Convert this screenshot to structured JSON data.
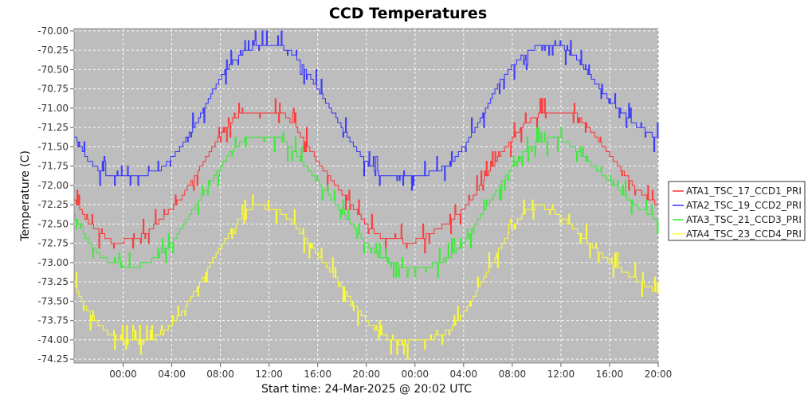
{
  "chart_data": {
    "type": "line",
    "title": "CCD Temperatures",
    "xlabel": "Start time: 24-Mar-2025 @ 20:02 UTC",
    "ylabel": "Temperature (C)",
    "ylim": [
      -74.3,
      -69.97
    ],
    "yticks": [
      -70.0,
      -70.25,
      -70.5,
      -70.75,
      -71.0,
      -71.25,
      -71.5,
      -71.75,
      -72.0,
      -72.25,
      -72.5,
      -72.75,
      -73.0,
      -73.25,
      -73.5,
      -73.75,
      -74.0,
      -74.25
    ],
    "ytick_labels": [
      "-70.00",
      "-70.25",
      "-70.50",
      "-70.75",
      "-71.00",
      "-71.25",
      "-71.50",
      "-71.75",
      "-72.00",
      "-72.25",
      "-72.50",
      "-72.75",
      "-73.00",
      "-73.25",
      "-73.50",
      "-73.75",
      "-74.00",
      "-74.25"
    ],
    "xlim": [
      -4.03,
      44.0
    ],
    "xticks": [
      0,
      4,
      8,
      12,
      16,
      20,
      24,
      28,
      32,
      36,
      40,
      44
    ],
    "xtick_labels": [
      "00:00",
      "04:00",
      "08:00",
      "12:00",
      "16:00",
      "20:00",
      "00:00",
      "04:00",
      "08:00",
      "12:00",
      "16:00",
      "20:00"
    ],
    "x_unit": "hours since 00:00 on 25-Mar-2025",
    "grid": true,
    "legend_position": "right",
    "series": [
      {
        "name": "ATA1_TSC_17_CCD1_PRI",
        "color": "#ff3333",
        "x": [
          -4,
          -3,
          -2,
          -1,
          0,
          1,
          2,
          3,
          4,
          5,
          6,
          7,
          8,
          9,
          10,
          11,
          12,
          13,
          14,
          15,
          16,
          17,
          18,
          19,
          20,
          21,
          22,
          23,
          24,
          25,
          26,
          27,
          28,
          29,
          30,
          31,
          32,
          33,
          34,
          35,
          36,
          37,
          38,
          39,
          40,
          41,
          42,
          43,
          44
        ],
        "y": [
          -72.2,
          -72.45,
          -72.6,
          -72.72,
          -72.72,
          -72.7,
          -72.6,
          -72.45,
          -72.3,
          -72.1,
          -71.85,
          -71.6,
          -71.35,
          -71.15,
          -71.05,
          -71.05,
          -71.05,
          -71.05,
          -71.2,
          -71.45,
          -71.7,
          -71.9,
          -72.1,
          -72.3,
          -72.5,
          -72.65,
          -72.7,
          -72.72,
          -72.72,
          -72.65,
          -72.55,
          -72.45,
          -72.3,
          -72.1,
          -71.85,
          -71.6,
          -71.4,
          -71.2,
          -71.1,
          -71.05,
          -71.05,
          -71.05,
          -71.2,
          -71.4,
          -71.6,
          -71.8,
          -72.0,
          -72.15,
          -72.25
        ]
      },
      {
        "name": "ATA2_TSC_19_CCD2_PRI",
        "color": "#3333ff",
        "x": [
          -4,
          -3,
          -2,
          -1,
          0,
          1,
          2,
          3,
          4,
          5,
          6,
          7,
          8,
          9,
          10,
          11,
          12,
          13,
          14,
          15,
          16,
          17,
          18,
          19,
          20,
          21,
          22,
          23,
          24,
          25,
          26,
          27,
          28,
          29,
          30,
          31,
          32,
          33,
          34,
          35,
          36,
          37,
          38,
          39,
          40,
          41,
          42,
          43,
          44
        ],
        "y": [
          -71.35,
          -71.65,
          -71.8,
          -71.9,
          -71.9,
          -71.9,
          -71.85,
          -71.8,
          -71.65,
          -71.45,
          -71.2,
          -70.9,
          -70.6,
          -70.4,
          -70.25,
          -70.2,
          -70.2,
          -70.2,
          -70.3,
          -70.5,
          -70.75,
          -71.0,
          -71.25,
          -71.5,
          -71.7,
          -71.85,
          -71.9,
          -71.9,
          -71.9,
          -71.85,
          -71.8,
          -71.7,
          -71.5,
          -71.25,
          -70.95,
          -70.65,
          -70.45,
          -70.3,
          -70.2,
          -70.2,
          -70.2,
          -70.3,
          -70.5,
          -70.7,
          -70.9,
          -71.05,
          -71.2,
          -71.3,
          -71.4
        ]
      },
      {
        "name": "ATA3_TSC_21_CCD3_PRI",
        "color": "#33ee33",
        "x": [
          -4,
          -3,
          -2,
          -1,
          0,
          1,
          2,
          3,
          4,
          5,
          6,
          7,
          8,
          9,
          10,
          11,
          12,
          13,
          14,
          15,
          16,
          17,
          18,
          19,
          20,
          21,
          22,
          23,
          24,
          25,
          26,
          27,
          28,
          29,
          30,
          31,
          32,
          33,
          34,
          35,
          36,
          37,
          38,
          39,
          40,
          41,
          42,
          43,
          44
        ],
        "y": [
          -72.4,
          -72.7,
          -72.9,
          -73.0,
          -73.05,
          -73.05,
          -73.0,
          -72.9,
          -72.75,
          -72.5,
          -72.25,
          -72.0,
          -71.75,
          -71.55,
          -71.4,
          -71.35,
          -71.35,
          -71.4,
          -71.55,
          -71.75,
          -71.95,
          -72.15,
          -72.35,
          -72.55,
          -72.75,
          -72.9,
          -73.0,
          -73.05,
          -73.05,
          -73.05,
          -73.0,
          -72.9,
          -72.75,
          -72.5,
          -72.25,
          -72.0,
          -71.75,
          -71.55,
          -71.45,
          -71.4,
          -71.4,
          -71.5,
          -71.65,
          -71.8,
          -71.95,
          -72.1,
          -72.25,
          -72.35,
          -72.45
        ]
      },
      {
        "name": "ATA4_TSC_23_CCD4_PRI",
        "color": "#ffff33",
        "x": [
          -4,
          -3,
          -2,
          -1,
          0,
          1,
          2,
          3,
          4,
          5,
          6,
          7,
          8,
          9,
          10,
          11,
          12,
          13,
          14,
          15,
          16,
          17,
          18,
          19,
          20,
          21,
          22,
          23,
          24,
          25,
          26,
          27,
          28,
          29,
          30,
          31,
          32,
          33,
          34,
          35,
          36,
          37,
          38,
          39,
          40,
          41,
          42,
          43,
          44
        ],
        "y": [
          -73.3,
          -73.6,
          -73.8,
          -73.95,
          -74.0,
          -74.0,
          -74.0,
          -73.95,
          -73.8,
          -73.6,
          -73.35,
          -73.05,
          -72.8,
          -72.55,
          -72.35,
          -72.25,
          -72.3,
          -72.35,
          -72.5,
          -72.7,
          -72.9,
          -73.1,
          -73.3,
          -73.55,
          -73.75,
          -73.9,
          -74.0,
          -74.05,
          -74.0,
          -74.0,
          -73.95,
          -73.85,
          -73.65,
          -73.4,
          -73.1,
          -72.8,
          -72.55,
          -72.35,
          -72.25,
          -72.3,
          -72.4,
          -72.55,
          -72.7,
          -72.85,
          -73.0,
          -73.1,
          -73.2,
          -73.3,
          -73.4
        ]
      }
    ]
  }
}
